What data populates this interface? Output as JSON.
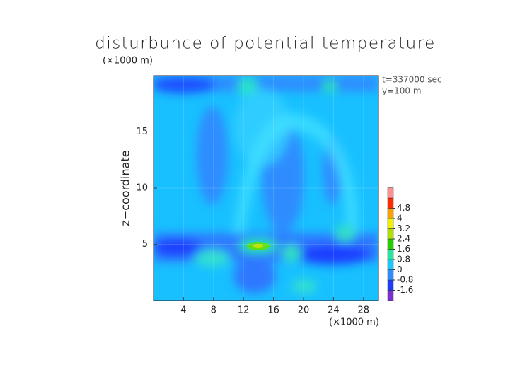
{
  "chart_data": {
    "type": "contour",
    "title": "disturbunce of potential temperature",
    "x_unit_label": "(×1000 m)",
    "y_unit_label": "(×1000 m)",
    "y_label": "z−coordinate",
    "annotations": [
      "t=337000 sec",
      "y=100 m"
    ],
    "xlim": [
      0,
      30
    ],
    "xticks": [
      4,
      8,
      12,
      16,
      20,
      24,
      28
    ],
    "ylim": [
      0,
      20
    ],
    "yticks": [
      5,
      10,
      15
    ],
    "colorbar": {
      "levels": [
        -1.6,
        -0.8,
        0,
        0.8,
        1.6,
        2.4,
        3.2,
        4,
        4.8
      ],
      "colors": [
        "#7a2fd0",
        "#1e3cff",
        "#2f8cff",
        "#18c8ff",
        "#26e6a0",
        "#22d000",
        "#b0e000",
        "#f0f000",
        "#ffa000",
        "#ff2a00",
        "#ff9090"
      ]
    }
  }
}
